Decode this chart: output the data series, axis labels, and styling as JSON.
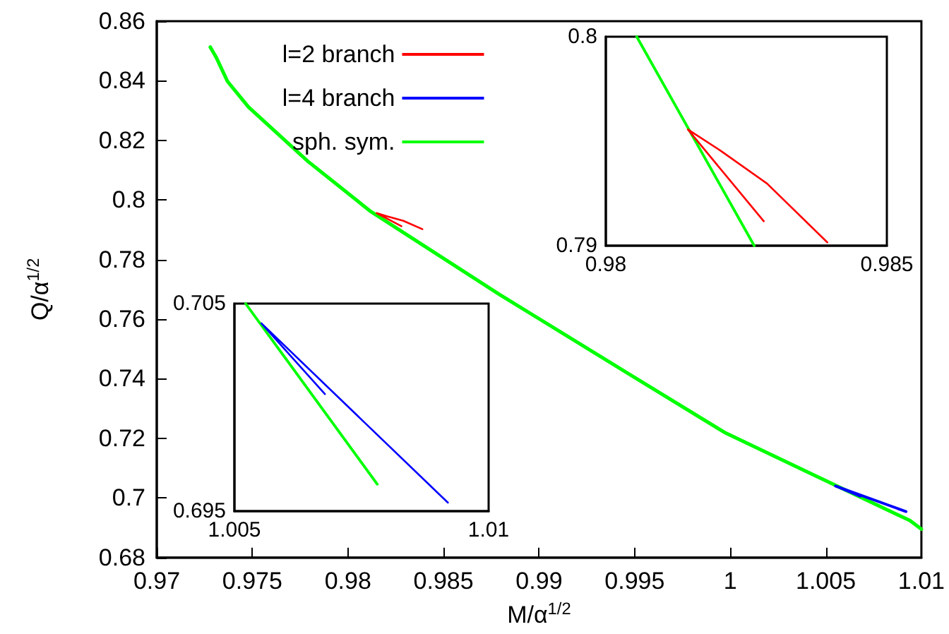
{
  "chart_data": [
    {
      "type": "line",
      "xlabel": "M/α$^{1/2}$",
      "ylabel": "Q/α$^{1/2}$",
      "xlim": [
        0.97,
        1.01
      ],
      "ylim": [
        0.68,
        0.86
      ],
      "xticks": [
        0.97,
        0.975,
        0.98,
        0.985,
        0.99,
        0.995,
        1,
        1.005,
        1.01
      ],
      "yticks": [
        0.68,
        0.7,
        0.72,
        0.74,
        0.76,
        0.78,
        0.8,
        0.82,
        0.84,
        0.86
      ],
      "legend": "top",
      "grid": false,
      "marker": "none",
      "line_style": "solid",
      "series": [
        {
          "name": "l=2 branch",
          "color": "#ff0000",
          "x": [
            0.9828,
            0.9815,
            0.982,
            0.9829,
            0.9839
          ],
          "values": [
            0.7912,
            0.7956,
            0.7946,
            0.793,
            0.7902
          ]
        },
        {
          "name": "l=4 branch",
          "color": "#0000ff",
          "x": [
            1.0068,
            1.0055,
            1.0092
          ],
          "values": [
            0.7006,
            0.704,
            0.6954
          ]
        },
        {
          "name": "sph. sym.",
          "color": "#00ff00",
          "x": [
            0.9728,
            0.9731,
            0.9737,
            0.9748,
            0.9779,
            0.9812,
            0.9879,
            0.9948,
            0.9997,
            1.0046,
            1.0094,
            1.01
          ],
          "values": [
            0.8513,
            0.848,
            0.8398,
            0.8312,
            0.813,
            0.7961,
            0.7684,
            0.7412,
            0.722,
            0.707,
            0.6924,
            0.6895
          ]
        }
      ]
    },
    {
      "type": "line",
      "xlim": [
        0.98,
        0.985
      ],
      "ylim": [
        0.79,
        0.8
      ],
      "xticks": [
        0.98,
        0.985
      ],
      "yticks": [
        0.79,
        0.8
      ],
      "legend": false,
      "grid": false,
      "marker": "none",
      "line_style": "solid",
      "series": [
        {
          "color": "#ff0000",
          "x": [
            0.98281,
            0.98146,
            0.98204,
            0.98287,
            0.98394
          ],
          "values": [
            0.79117,
            0.79556,
            0.79455,
            0.79297,
            0.79016
          ]
        },
        {
          "color": "#00ff00",
          "x": [
            0.98055,
            0.98264
          ],
          "values": [
            0.8,
            0.79
          ]
        }
      ]
    },
    {
      "type": "line",
      "xlim": [
        1.005,
        1.01
      ],
      "ylim": [
        0.695,
        0.705
      ],
      "xticks": [
        1.005,
        1.01
      ],
      "yticks": [
        0.695,
        0.705
      ],
      "legend": false,
      "grid": false,
      "marker": "none",
      "line_style": "solid",
      "series": [
        {
          "color": "#0000ff",
          "x": [
            1.00678,
            1.00553,
            1.0092
          ],
          "values": [
            0.70064,
            0.70405,
            0.69541
          ]
        },
        {
          "color": "#00ff00",
          "x": [
            1.00522,
            1.00781
          ],
          "values": [
            0.705,
            0.6963
          ]
        }
      ]
    }
  ]
}
